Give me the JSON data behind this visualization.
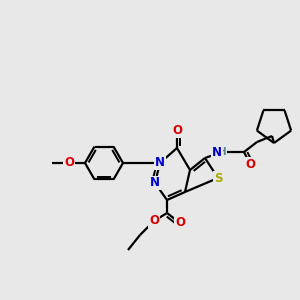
{
  "bg_color": "#e8e8e8",
  "atom_colors": {
    "C": "#000000",
    "N": "#0000cc",
    "O": "#dd0000",
    "S": "#aaaa00",
    "H": "#558888"
  },
  "bond_color": "#000000",
  "bond_width": 1.6,
  "figsize": [
    3.0,
    3.0
  ],
  "dpi": 100
}
